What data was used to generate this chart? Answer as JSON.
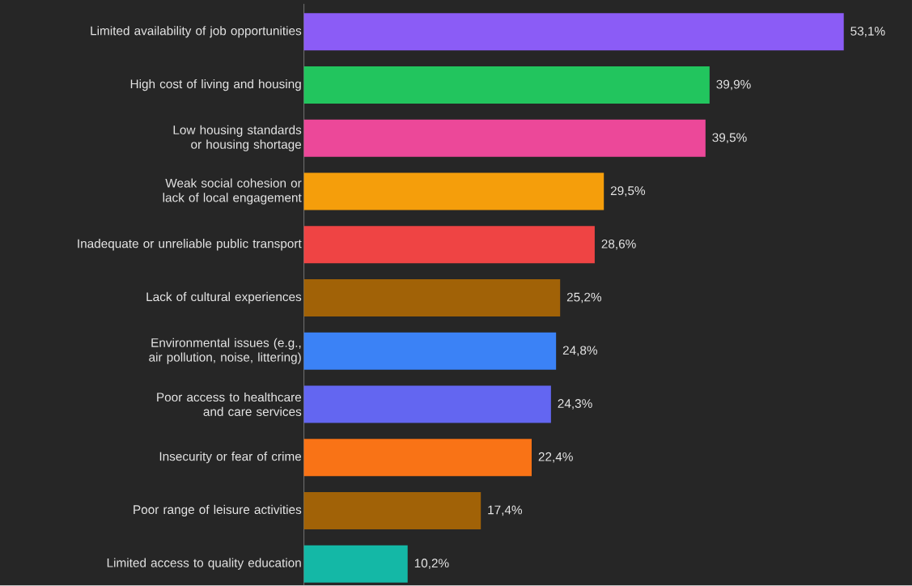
{
  "chart_data": {
    "type": "bar",
    "orientation": "horizontal",
    "categories": [
      "Limited availability of job opportunities",
      "High cost of living and housing",
      "Low housing standards or housing shortage",
      "Weak social cohesion or lack of local engagement",
      "Inadequate or unreliable public transport",
      "Lack of cultural experiences",
      "Environmental issues (e.g., air pollution, noise, littering)",
      "Poor access to healthcare and care services",
      "Insecurity or fear of crime",
      "Poor range of leisure activities",
      "Limited access to quality education"
    ],
    "values": [
      53.1,
      39.9,
      39.5,
      29.5,
      28.6,
      25.2,
      24.8,
      24.3,
      22.4,
      17.4,
      10.2
    ],
    "value_labels": [
      "53,1%",
      "39,9%",
      "39,5%",
      "29,5%",
      "28,6%",
      "25,2%",
      "24,8%",
      "24,3%",
      "22,4%",
      "17,4%",
      "10,2%"
    ],
    "colors": [
      "#8b5cf6",
      "#22c55e",
      "#ec4899",
      "#f59e0b",
      "#ef4444",
      "#a16207",
      "#3b82f6",
      "#6366f1",
      "#f97316",
      "#a16207",
      "#14b8a6"
    ]
  }
}
